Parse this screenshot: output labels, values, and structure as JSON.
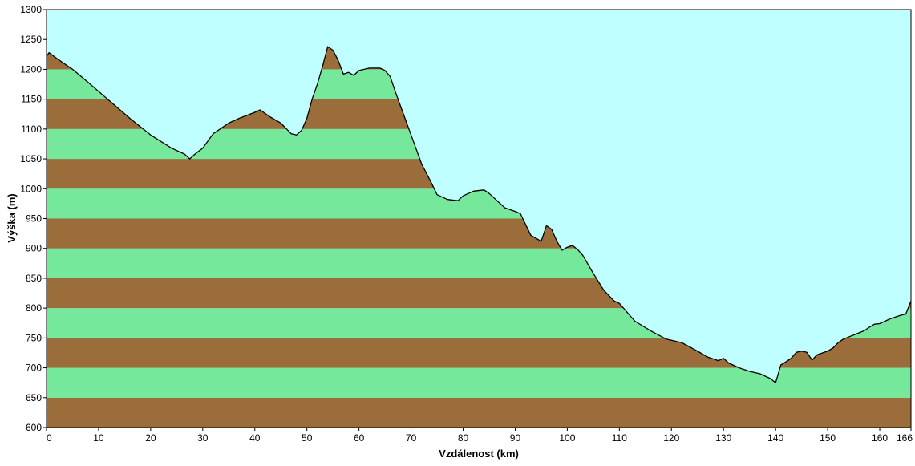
{
  "chart_data": {
    "type": "area",
    "title": "",
    "xlabel": "Vzdálenost  (km)",
    "ylabel": "Výška (m)",
    "xlim": [
      0,
      166
    ],
    "ylim": [
      600,
      1300
    ],
    "x_ticks": [
      0,
      10,
      20,
      30,
      40,
      50,
      60,
      70,
      80,
      90,
      100,
      110,
      120,
      130,
      140,
      150,
      160,
      166
    ],
    "y_ticks": [
      600,
      650,
      700,
      750,
      800,
      850,
      900,
      950,
      1000,
      1050,
      1100,
      1150,
      1200,
      1250,
      1300
    ],
    "grid": false,
    "band_step": 50,
    "colors": {
      "sky": "#c0ffff",
      "band_odd": "#9b6d3a",
      "band_even": "#76e89b",
      "outline": "#000000"
    },
    "series": [
      {
        "x": [
          0,
          0.5,
          2,
          5,
          8,
          12,
          16,
          20,
          24,
          26.5,
          27.5,
          28.5,
          30,
          32,
          33,
          35,
          37,
          40,
          41,
          43,
          45,
          47,
          48,
          49,
          50,
          51,
          52,
          53,
          54,
          55,
          56,
          57,
          58,
          59,
          60,
          61,
          62,
          64,
          65,
          66,
          67,
          68,
          70,
          72,
          74,
          75,
          77,
          79,
          80,
          82,
          84,
          85,
          88,
          90,
          91,
          92,
          93,
          95,
          96,
          97,
          98,
          99,
          100,
          101,
          102,
          103,
          105,
          107,
          109,
          110,
          113,
          116,
          119,
          122,
          125,
          127,
          129,
          130,
          131,
          133,
          135,
          137,
          138,
          139,
          140,
          141,
          142,
          143,
          144,
          145,
          146,
          147,
          148,
          150,
          151,
          152,
          153,
          155,
          157,
          158,
          159,
          160,
          162,
          164,
          165,
          166
        ],
        "y": [
          1222,
          1228,
          1218,
          1200,
          1178,
          1148,
          1118,
          1090,
          1068,
          1058,
          1050,
          1058,
          1068,
          1092,
          1098,
          1110,
          1118,
          1128,
          1132,
          1120,
          1110,
          1092,
          1090,
          1098,
          1118,
          1150,
          1175,
          1205,
          1238,
          1232,
          1215,
          1192,
          1195,
          1190,
          1198,
          1200,
          1202,
          1202,
          1198,
          1188,
          1162,
          1138,
          1090,
          1042,
          1008,
          990,
          982,
          980,
          988,
          996,
          998,
          992,
          968,
          962,
          958,
          940,
          922,
          912,
          938,
          932,
          912,
          897,
          902,
          905,
          898,
          888,
          858,
          830,
          812,
          808,
          778,
          762,
          748,
          742,
          728,
          718,
          712,
          716,
          708,
          700,
          694,
          690,
          686,
          682,
          675,
          705,
          710,
          716,
          726,
          728,
          726,
          713,
          722,
          728,
          733,
          742,
          748,
          755,
          762,
          768,
          773,
          774,
          782,
          788,
          790,
          812
        ]
      }
    ]
  }
}
